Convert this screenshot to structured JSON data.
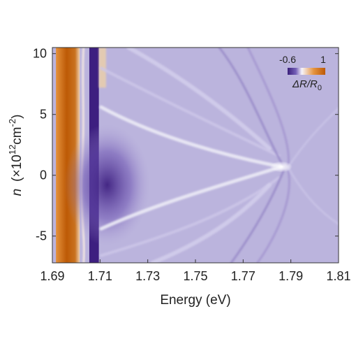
{
  "chart_data": {
    "type": "heatmap",
    "title": "",
    "xlabel": "Energy (eV)",
    "ylabel": {
      "var": "n",
      "open": "(",
      "times": "×10",
      "exp": "12",
      "unit": "cm",
      "unit_exp": "-2",
      "close": ")"
    },
    "xlim": [
      1.69,
      1.81
    ],
    "ylim": [
      -7.2,
      10.5
    ],
    "x_ticks": [
      1.69,
      1.71,
      1.73,
      1.75,
      1.77,
      1.79,
      1.81
    ],
    "x_tick_labels": [
      "1.69",
      "1.71",
      "1.73",
      "1.75",
      "1.77",
      "1.79",
      "1.81"
    ],
    "y_ticks": [
      -5,
      0,
      5,
      10
    ],
    "y_tick_labels": [
      "-5",
      "0",
      "5",
      "10"
    ],
    "colorbar": {
      "min": -0.6,
      "max": 1,
      "min_label": "-0.6",
      "max_label": "1",
      "label_main": "ΔR/R",
      "label_sub": "0",
      "colors": [
        "#3a1f7a",
        "#7560b8",
        "#f6f4fb",
        "#e4913c",
        "#bd5a06"
      ]
    },
    "features": [
      {
        "name": "positive band",
        "x": 1.6965,
        "y_range": [
          -7.2,
          10.5
        ],
        "value": 1
      },
      {
        "name": "negative band",
        "x": 1.7075,
        "y_range": [
          -7.2,
          10.5
        ],
        "value": -0.6
      },
      {
        "name": "bright spot",
        "x": 1.786,
        "y": 0.7,
        "value": 0.1
      }
    ]
  }
}
